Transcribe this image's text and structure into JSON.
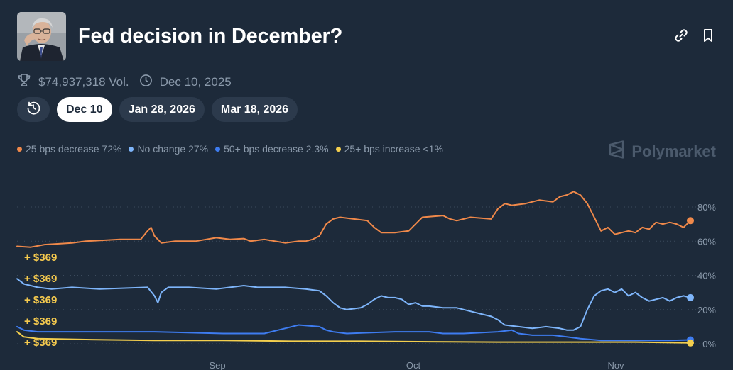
{
  "market": {
    "title": "Fed decision in December?",
    "volume": "$74,937,318 Vol.",
    "end_date": "Dec 10, 2025",
    "image_alt": "Jerome Powell photo"
  },
  "tabs": [
    {
      "label": "Dec 10",
      "active": true
    },
    {
      "label": "Jan 28, 2026",
      "active": false
    },
    {
      "label": "Mar 18, 2026",
      "active": false
    }
  ],
  "brand": "Polymarket",
  "colors": {
    "background": "#1d2a3a",
    "orange": "#f0894a",
    "lightblue": "#7eb5fa",
    "blue": "#3e7cf0",
    "yellow": "#f4cf4e",
    "muted": "#8b9aab",
    "grid": "#3b4a5c",
    "trade": "#f4c94e"
  },
  "icons": [
    "trophy-icon",
    "clock-icon",
    "history-icon",
    "link-icon",
    "bookmark-icon",
    "polymarket-logo-icon"
  ],
  "chart_data": {
    "type": "line",
    "x_labels": [
      "Sep",
      "Oct",
      "Nov"
    ],
    "y_ticks": [
      "80%",
      "60%",
      "40%",
      "20%",
      "0%"
    ],
    "ylim": [
      0,
      100
    ],
    "trades": [
      "+ $369",
      "+ $369",
      "+ $369",
      "+ $369",
      "+ $369"
    ],
    "series": [
      {
        "name": "25 bps decrease",
        "legend": "25 bps decrease 72%",
        "color": "#f0894a",
        "current": 72,
        "points": [
          [
            0,
            57
          ],
          [
            2,
            56.5
          ],
          [
            4,
            58
          ],
          [
            8,
            59
          ],
          [
            10,
            60
          ],
          [
            15,
            61
          ],
          [
            18,
            61
          ],
          [
            19,
            66
          ],
          [
            19.5,
            68
          ],
          [
            20,
            63
          ],
          [
            21,
            59
          ],
          [
            23,
            60
          ],
          [
            26,
            60
          ],
          [
            29,
            62
          ],
          [
            31,
            61
          ],
          [
            33,
            61.5
          ],
          [
            34,
            60
          ],
          [
            36,
            61
          ],
          [
            39,
            59
          ],
          [
            41,
            60
          ],
          [
            42,
            60
          ],
          [
            43,
            61
          ],
          [
            44,
            63
          ],
          [
            45,
            70
          ],
          [
            46,
            73
          ],
          [
            47,
            74
          ],
          [
            49,
            73
          ],
          [
            51,
            72
          ],
          [
            52,
            68
          ],
          [
            53,
            65
          ],
          [
            55,
            65
          ],
          [
            57,
            66
          ],
          [
            58,
            70
          ],
          [
            59,
            74
          ],
          [
            62,
            75
          ],
          [
            63,
            73
          ],
          [
            64,
            72
          ],
          [
            66,
            74
          ],
          [
            69,
            73
          ],
          [
            70,
            79
          ],
          [
            71,
            82
          ],
          [
            72,
            81
          ],
          [
            74,
            82
          ],
          [
            76,
            84
          ],
          [
            78,
            83
          ],
          [
            79,
            86
          ],
          [
            80,
            87
          ],
          [
            81,
            89
          ],
          [
            82,
            87
          ],
          [
            83,
            82
          ],
          [
            84,
            74
          ],
          [
            85,
            66
          ],
          [
            86,
            68
          ],
          [
            87,
            64
          ],
          [
            88,
            65
          ],
          [
            89,
            66
          ],
          [
            90,
            65
          ],
          [
            91,
            68
          ],
          [
            92,
            67
          ],
          [
            93,
            71
          ],
          [
            94,
            70
          ],
          [
            95,
            71
          ],
          [
            96,
            70
          ],
          [
            97,
            68
          ],
          [
            98,
            72
          ]
        ]
      },
      {
        "name": "No change",
        "legend": "No change 27%",
        "color": "#7eb5fa",
        "current": 27,
        "points": [
          [
            0,
            38
          ],
          [
            1,
            35
          ],
          [
            3,
            33
          ],
          [
            5,
            32
          ],
          [
            8,
            33
          ],
          [
            12,
            32
          ],
          [
            19,
            33
          ],
          [
            20,
            28
          ],
          [
            20.5,
            24
          ],
          [
            21,
            30
          ],
          [
            22,
            33
          ],
          [
            25,
            33
          ],
          [
            29,
            32
          ],
          [
            31,
            33
          ],
          [
            33,
            34
          ],
          [
            35,
            33
          ],
          [
            37,
            33
          ],
          [
            39,
            33
          ],
          [
            42,
            32
          ],
          [
            44,
            31
          ],
          [
            45,
            28
          ],
          [
            46,
            24
          ],
          [
            47,
            21
          ],
          [
            48,
            20
          ],
          [
            50,
            21
          ],
          [
            51,
            23
          ],
          [
            52,
            26
          ],
          [
            53,
            28
          ],
          [
            54,
            27
          ],
          [
            55,
            27
          ],
          [
            56,
            26
          ],
          [
            57,
            23
          ],
          [
            58,
            24
          ],
          [
            59,
            22
          ],
          [
            60,
            22
          ],
          [
            62,
            21
          ],
          [
            64,
            21
          ],
          [
            66,
            19
          ],
          [
            68,
            17
          ],
          [
            69,
            16
          ],
          [
            70,
            14
          ],
          [
            71,
            11
          ],
          [
            73,
            10
          ],
          [
            75,
            9
          ],
          [
            77,
            10
          ],
          [
            79,
            9
          ],
          [
            80,
            8
          ],
          [
            81,
            8
          ],
          [
            82,
            10
          ],
          [
            83,
            20
          ],
          [
            84,
            28
          ],
          [
            85,
            31
          ],
          [
            86,
            32
          ],
          [
            87,
            30
          ],
          [
            88,
            32
          ],
          [
            89,
            28
          ],
          [
            90,
            30
          ],
          [
            91,
            27
          ],
          [
            92,
            25
          ],
          [
            93,
            26
          ],
          [
            94,
            27
          ],
          [
            95,
            25
          ],
          [
            96,
            27
          ],
          [
            97,
            28
          ],
          [
            98,
            27
          ]
        ]
      },
      {
        "name": "50+ bps decrease",
        "legend": "50+ bps decrease 2.3%",
        "color": "#3e7cf0",
        "current": 2.3,
        "points": [
          [
            0,
            10
          ],
          [
            1,
            8
          ],
          [
            3,
            7
          ],
          [
            10,
            7
          ],
          [
            20,
            7
          ],
          [
            30,
            6
          ],
          [
            36,
            6
          ],
          [
            38,
            8
          ],
          [
            39,
            9
          ],
          [
            41,
            11
          ],
          [
            44,
            10
          ],
          [
            45,
            8
          ],
          [
            46,
            7
          ],
          [
            48,
            6
          ],
          [
            55,
            7
          ],
          [
            60,
            7
          ],
          [
            62,
            6
          ],
          [
            65,
            6
          ],
          [
            70,
            7
          ],
          [
            72,
            8
          ],
          [
            73,
            6
          ],
          [
            75,
            5
          ],
          [
            78,
            5
          ],
          [
            80,
            4
          ],
          [
            82,
            3
          ],
          [
            85,
            2
          ],
          [
            90,
            2
          ],
          [
            95,
            2
          ],
          [
            98,
            2.3
          ]
        ]
      },
      {
        "name": "25+ bps increase",
        "legend": "25+ bps increase <1%",
        "color": "#f4cf4e",
        "current": 0.5,
        "points": [
          [
            0,
            7
          ],
          [
            1,
            4
          ],
          [
            3,
            3
          ],
          [
            10,
            2.5
          ],
          [
            20,
            2
          ],
          [
            30,
            2
          ],
          [
            40,
            1.5
          ],
          [
            50,
            1.5
          ],
          [
            60,
            1.2
          ],
          [
            70,
            1
          ],
          [
            80,
            1
          ],
          [
            90,
            1
          ],
          [
            98,
            0.5
          ]
        ]
      }
    ]
  }
}
